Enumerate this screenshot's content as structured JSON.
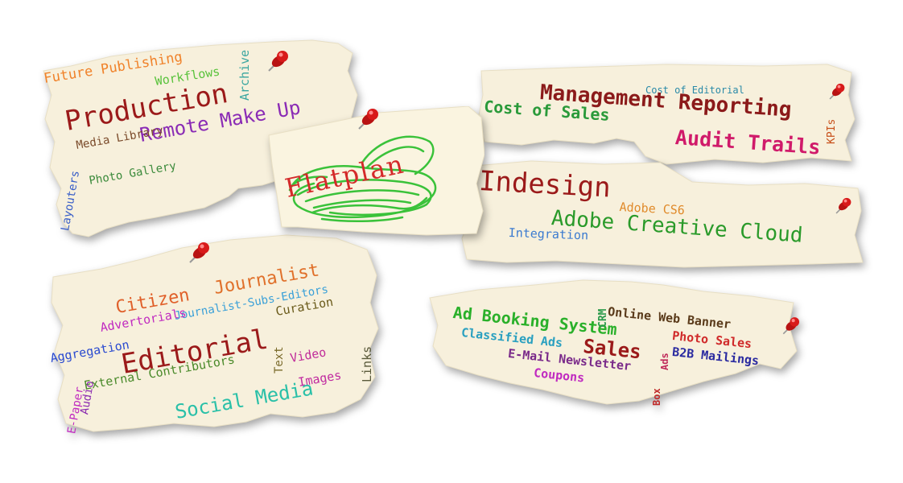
{
  "notes": {
    "production": {
      "words": [
        {
          "text": "Future Publishing",
          "color": "#f0822a"
        },
        {
          "text": "Workflows",
          "color": "#58c23a"
        },
        {
          "text": "Archive",
          "color": "#3aa6a0"
        },
        {
          "text": "Production",
          "color": "#9b1a1a"
        },
        {
          "text": "Remote Make Up",
          "color": "#8a2bb5"
        },
        {
          "text": "Media Library",
          "color": "#7a4a2a"
        },
        {
          "text": "Layouters",
          "color": "#3a5fc8"
        },
        {
          "text": "Photo Gallery",
          "color": "#3b8a3b"
        }
      ]
    },
    "flatplan": {
      "words": [
        {
          "text": "Flatplan",
          "color": "#d42a2a"
        }
      ]
    },
    "management": {
      "words": [
        {
          "text": "Cost of Editorial",
          "color": "#2a8aa8"
        },
        {
          "text": "Management Reporting",
          "color": "#8b1a1a"
        },
        {
          "text": "Cost of Sales",
          "color": "#2a9a3a"
        },
        {
          "text": "KPIs",
          "color": "#c8501a"
        },
        {
          "text": "Audit Trails",
          "color": "#d01a6a"
        }
      ]
    },
    "indesign": {
      "words": [
        {
          "text": "Indesign",
          "color": "#9b1a1a"
        },
        {
          "text": "Adobe CS6",
          "color": "#e08a2a"
        },
        {
          "text": "Adobe Creative Cloud",
          "color": "#2a9a2a"
        },
        {
          "text": "Integration",
          "color": "#3a7ad0"
        }
      ]
    },
    "editorial": {
      "words": [
        {
          "text": "Citizen",
          "color": "#e0602a"
        },
        {
          "text": "Journalist",
          "color": "#e0702a"
        },
        {
          "text": "Journalist-Subs-Editors",
          "color": "#3aa0d8"
        },
        {
          "text": "Advertorials",
          "color": "#c02ac0"
        },
        {
          "text": "Curation",
          "color": "#6a5a1a"
        },
        {
          "text": "Aggregation",
          "color": "#2a4ad0"
        },
        {
          "text": "Editorial",
          "color": "#9b1a1a"
        },
        {
          "text": "External Contributors",
          "color": "#4a8a2a"
        },
        {
          "text": "Text",
          "color": "#7a6a2a"
        },
        {
          "text": "Video",
          "color": "#c02a9a"
        },
        {
          "text": "Links",
          "color": "#5a5a3a"
        },
        {
          "text": "Images",
          "color": "#c02aa0"
        },
        {
          "text": "Social Media",
          "color": "#2ac0a8"
        },
        {
          "text": "E-Paper",
          "color": "#c02ac0"
        },
        {
          "text": "Audio",
          "color": "#8a2ab0"
        }
      ]
    },
    "sales": {
      "words": [
        {
          "text": "Ad Booking System",
          "color": "#2ab02a"
        },
        {
          "text": "CRM",
          "color": "#2a9a4a"
        },
        {
          "text": "Online Web Banner",
          "color": "#5a3a1a"
        },
        {
          "text": "Classified Ads",
          "color": "#2aa0c0"
        },
        {
          "text": "Sales",
          "color": "#9b1a1a"
        },
        {
          "text": "Ads",
          "color": "#c02a5a"
        },
        {
          "text": "Photo Sales",
          "color": "#d02a2a"
        },
        {
          "text": "B2B Mailings",
          "color": "#2a2aa0"
        },
        {
          "text": "E-Mail Newsletter",
          "color": "#7a2a8a"
        },
        {
          "text": "Box",
          "color": "#c02a2a"
        },
        {
          "text": "Coupons",
          "color": "#c02ac0"
        }
      ]
    }
  },
  "colors": {
    "paper": "#f7f0dc",
    "pin": "#d81a1a",
    "scribble": "#3ac23a"
  }
}
